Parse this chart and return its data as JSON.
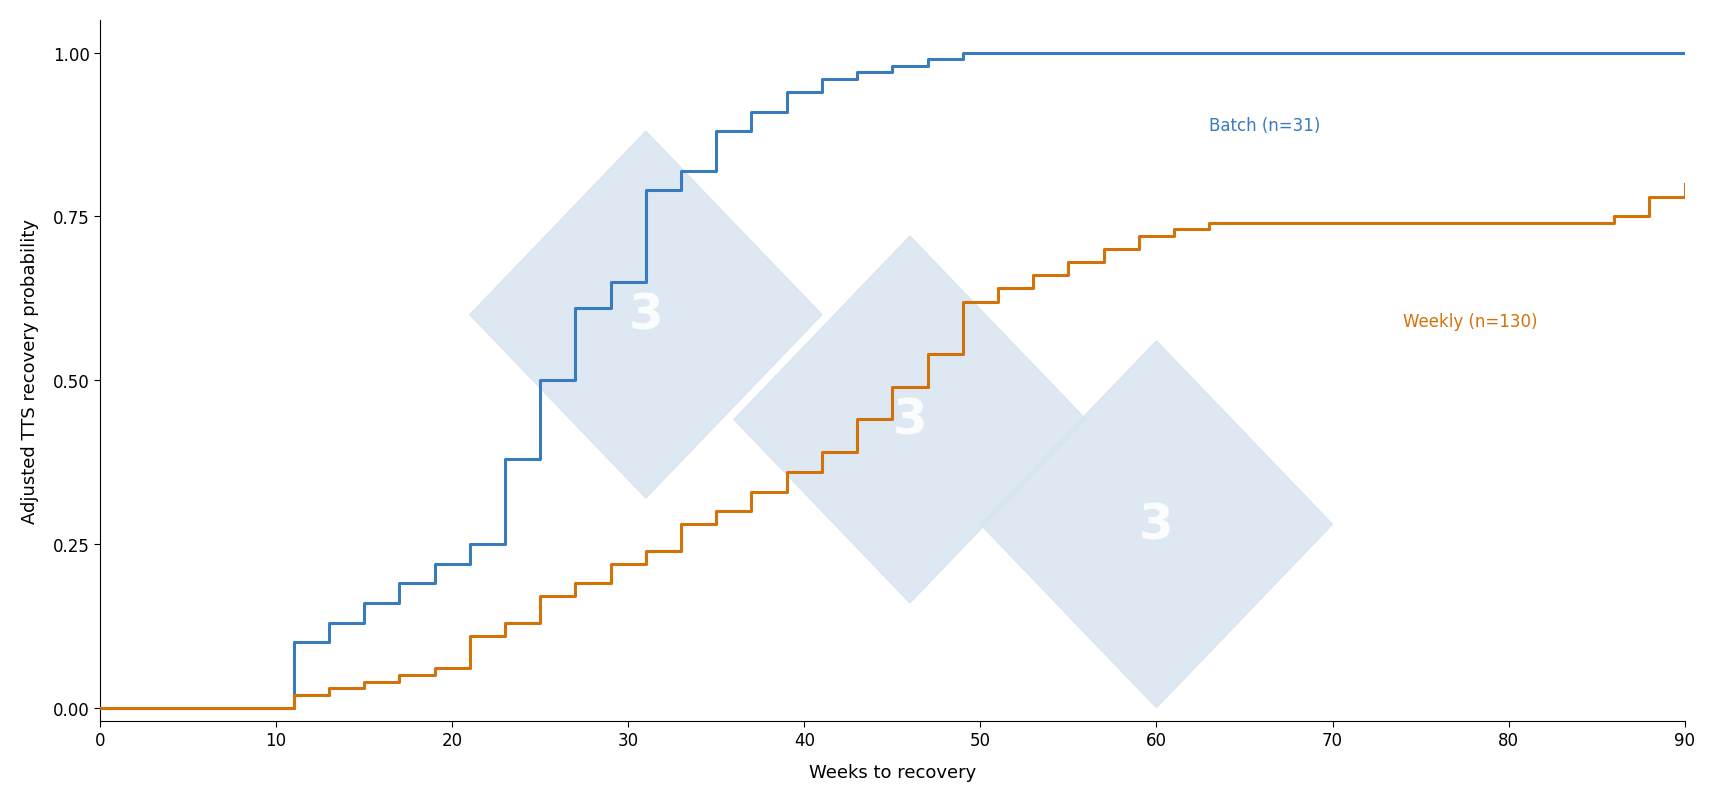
{
  "batch_x": [
    0,
    10,
    11,
    12,
    13,
    14,
    15,
    16,
    17,
    18,
    19,
    20,
    21,
    22,
    23,
    24,
    25,
    26,
    27,
    28,
    29,
    30,
    31,
    32,
    33,
    34,
    35,
    36,
    37,
    38,
    39,
    40,
    41,
    42,
    43,
    44,
    45,
    46,
    47,
    48,
    49,
    50,
    90
  ],
  "batch_y": [
    0.0,
    0.0,
    0.1,
    0.1,
    0.13,
    0.13,
    0.16,
    0.16,
    0.19,
    0.19,
    0.22,
    0.22,
    0.25,
    0.25,
    0.38,
    0.38,
    0.5,
    0.5,
    0.61,
    0.61,
    0.65,
    0.65,
    0.79,
    0.79,
    0.82,
    0.82,
    0.88,
    0.88,
    0.91,
    0.91,
    0.94,
    0.94,
    0.96,
    0.96,
    0.97,
    0.97,
    0.98,
    0.98,
    0.99,
    0.99,
    1.0,
    1.0,
    1.0
  ],
  "weekly_x": [
    0,
    10,
    11,
    12,
    13,
    14,
    15,
    16,
    17,
    18,
    19,
    20,
    21,
    22,
    23,
    24,
    25,
    26,
    27,
    28,
    29,
    30,
    31,
    32,
    33,
    34,
    35,
    36,
    37,
    38,
    39,
    40,
    41,
    42,
    43,
    44,
    45,
    46,
    47,
    48,
    49,
    50,
    51,
    52,
    53,
    54,
    55,
    56,
    57,
    58,
    59,
    60,
    61,
    62,
    63,
    64,
    65,
    66,
    67,
    85,
    86,
    87,
    88,
    89,
    90
  ],
  "weekly_y": [
    0.0,
    0.0,
    0.02,
    0.02,
    0.03,
    0.03,
    0.04,
    0.04,
    0.05,
    0.05,
    0.06,
    0.06,
    0.11,
    0.11,
    0.13,
    0.13,
    0.17,
    0.17,
    0.19,
    0.19,
    0.22,
    0.22,
    0.24,
    0.24,
    0.28,
    0.28,
    0.3,
    0.3,
    0.33,
    0.33,
    0.36,
    0.36,
    0.39,
    0.39,
    0.44,
    0.44,
    0.49,
    0.49,
    0.54,
    0.54,
    0.62,
    0.62,
    0.64,
    0.64,
    0.66,
    0.66,
    0.68,
    0.68,
    0.7,
    0.7,
    0.72,
    0.72,
    0.73,
    0.73,
    0.74,
    0.74,
    0.74,
    0.74,
    0.74,
    0.74,
    0.75,
    0.75,
    0.78,
    0.78,
    0.8
  ],
  "batch_color": "#3a7abf",
  "weekly_color": "#d4720a",
  "batch_label": "Batch (n=31)",
  "weekly_label": "Weekly (n=130)",
  "xlabel": "Weeks to recovery",
  "ylabel": "Adjusted TTS recovery probability",
  "xlim": [
    0,
    90
  ],
  "ylim": [
    -0.02,
    1.05
  ],
  "xticks": [
    0,
    10,
    20,
    30,
    40,
    50,
    60,
    70,
    80,
    90
  ],
  "yticks": [
    0.0,
    0.25,
    0.5,
    0.75,
    1.0
  ],
  "line_width": 2.2,
  "label_fontsize": 13,
  "tick_fontsize": 12,
  "annotation_fontsize": 12,
  "background_color": "#ffffff",
  "watermark_color": "#d8e4f0"
}
